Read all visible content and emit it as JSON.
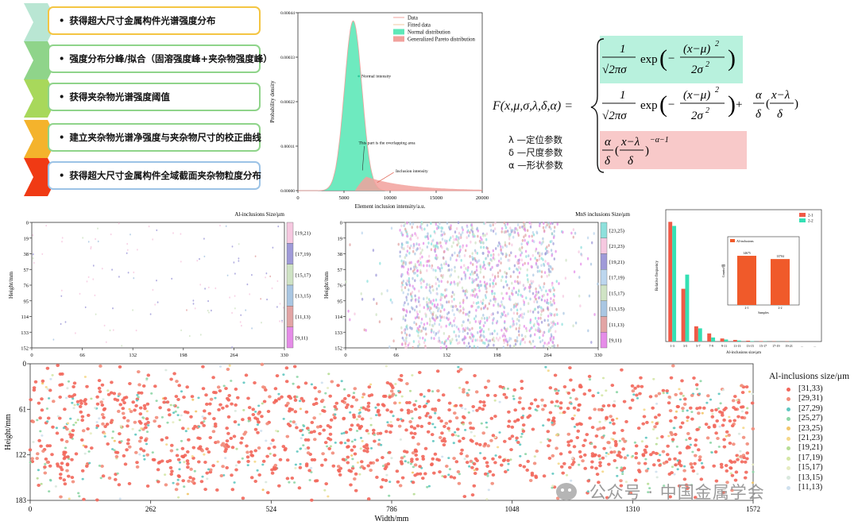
{
  "workflow": {
    "bullet": "•",
    "steps": [
      {
        "label": "获得超大尺寸金属构件光谱强度分布",
        "chevron_color": "#b9e6d3",
        "border_color": "#f4c542"
      },
      {
        "label": "强度分布分峰/拟合（固溶强度峰+夹杂物强度峰）",
        "chevron_color": "#8fd48a",
        "border_color": "#8fd48a"
      },
      {
        "label": "获得夹杂物光谱强度阈值",
        "chevron_color": "#a8d85b",
        "border_color": "#8fd48a"
      },
      {
        "label": "建立夹杂物光谱净强度与夹杂物尺寸的校正曲线",
        "chevron_color": "#f4b32c",
        "border_color": "#8fd48a"
      },
      {
        "label": "获得超大尺寸金属构件全域截面夹杂物粒度分布",
        "chevron_color": "#f03a14",
        "border_color": "#9cc3e6"
      }
    ]
  },
  "formula": {
    "lhs": "F(x,μ,σ,λ,δ,α) =",
    "params": [
      "λ —定位参数",
      "δ —尺度参数",
      "α —形状参数"
    ]
  },
  "watermark": "公众号 · 中国金属学会",
  "chart_data": [
    {
      "id": "distribution",
      "type": "line",
      "xlabel": "Element inclusion intensity/a.u.",
      "ylabel": "Probability density",
      "xlim": [
        0,
        20000
      ],
      "ylim": [
        0,
        0.00044
      ],
      "x_ticks": [
        "0",
        "5000",
        "10000",
        "15000",
        "20000"
      ],
      "y_ticks": [
        "0.00000",
        "0.00011",
        "0.00022",
        "0.00033",
        "0.00044"
      ],
      "legend": [
        "Data",
        "Fitted data",
        "Normal distribution",
        "Generalized Pareto distribution"
      ],
      "annotations": [
        "Normal intensity",
        "This part is the overlapping area",
        "Inclusion intensity"
      ],
      "normal": {
        "mu": 6000,
        "sigma": 950,
        "peak": 0.00042
      },
      "pareto": {
        "start": 6200,
        "peak": 4.5e-05,
        "decay": 4500
      },
      "colors": {
        "normal": "#5ee8b8",
        "pareto": "#f2a19c",
        "data": "#f2a19c",
        "fit": "#f0c8a0"
      }
    },
    {
      "id": "al-map",
      "type": "scatter",
      "title": "Al-inclusions Size/μm",
      "ylabel": "Height/mm",
      "x_ticks": [
        "0",
        "66",
        "132",
        "198",
        "264",
        "330"
      ],
      "y_ticks": [
        "0",
        "19",
        "38",
        "57",
        "76",
        "95",
        "114",
        "133",
        "152"
      ],
      "xlim": [
        0,
        330
      ],
      "ylim": [
        0,
        152
      ],
      "size_bins": [
        "[19,21)",
        "[17,19)",
        "[15,17)",
        "[13,15)",
        "[11,13)",
        "[9,11)"
      ],
      "bin_colors": [
        "#f6c8e0",
        "#9f9ad8",
        "#cfe3c4",
        "#a9c6e2",
        "#e2a4a4",
        "#e58ce8"
      ],
      "density": "sparse"
    },
    {
      "id": "mns-map",
      "type": "scatter",
      "title": "MnS inclusions Size/μm",
      "ylabel": "Height/mm",
      "x_ticks": [
        "0",
        "66",
        "132",
        "198",
        "264",
        "330"
      ],
      "y_ticks": [
        "0",
        "19",
        "38",
        "57",
        "76",
        "95",
        "114",
        "133",
        "152"
      ],
      "xlim": [
        0,
        330
      ],
      "ylim": [
        0,
        152
      ],
      "size_bins": [
        "[23,25)",
        "[21,23)",
        "[19,21)",
        "[17,19)",
        "[15,17)",
        "[13,15)",
        "[11,13)",
        "[9,11)"
      ],
      "bin_colors": [
        "#8ee0dc",
        "#f6c8e0",
        "#9f9ad8",
        "#bcd6ee",
        "#cfe3c4",
        "#a9c6e2",
        "#e2a4a4",
        "#e58ce8"
      ],
      "density": "dense"
    },
    {
      "id": "frequency",
      "type": "bar",
      "xlabel": "Al-inclusions size/μm",
      "ylabel": "Relative frequency",
      "categories": [
        "1-3",
        "3-5",
        "5-7",
        "7-9",
        "9-11",
        "11-13",
        "13-15",
        "15-17",
        "17-19",
        "19-21",
        "...",
        "..."
      ],
      "series": [
        {
          "name": "2-1",
          "color": "#f05a47",
          "values": [
            0.59,
            0.26,
            0.075,
            0.04,
            0.015,
            0.008,
            0.004,
            0.002,
            0.001,
            0.001,
            0,
            0
          ]
        },
        {
          "name": "2-2",
          "color": "#34e0b4",
          "values": [
            0.57,
            0.33,
            0.065,
            0.02,
            0.01,
            0.005,
            0.002,
            0.001,
            0.0005,
            0.0005,
            0,
            0
          ]
        }
      ],
      "ylim": [
        0,
        0.65
      ],
      "inset": {
        "legend": "Al-inclusions",
        "xlabel": "Samples",
        "ylabel": "Counts/個",
        "categories": [
          "2-1",
          "2-2"
        ],
        "values": [
          14675,
          13704
        ],
        "color": "#f05a2a"
      }
    },
    {
      "id": "full-section",
      "type": "scatter",
      "xlabel": "Width/mm",
      "ylabel": "Height/mm",
      "x_ticks": [
        "0",
        "262",
        "524",
        "786",
        "1048",
        "1310",
        "1572"
      ],
      "y_ticks": [
        "0",
        "61",
        "122",
        "183"
      ],
      "xlim": [
        0,
        1572
      ],
      "ylim": [
        0,
        183
      ],
      "legend_title": "Al-inclusions size/μm",
      "size_bins": [
        "[31,33)",
        "[29,31)",
        "[27,29)",
        "[25,27)",
        "[23,25)",
        "[21,23)",
        "[19,21)",
        "[17,19)",
        "[15,17)",
        "[13,15)",
        "[11,13)"
      ],
      "bin_colors": [
        "#f2665a",
        "#f28c7a",
        "#5fc6c0",
        "#8ed6a6",
        "#f2c66a",
        "#f5d88a",
        "#b7dd95",
        "#d5e7a6",
        "#e6ecc2",
        "#d9e8de",
        "#cfe0ee"
      ]
    }
  ]
}
